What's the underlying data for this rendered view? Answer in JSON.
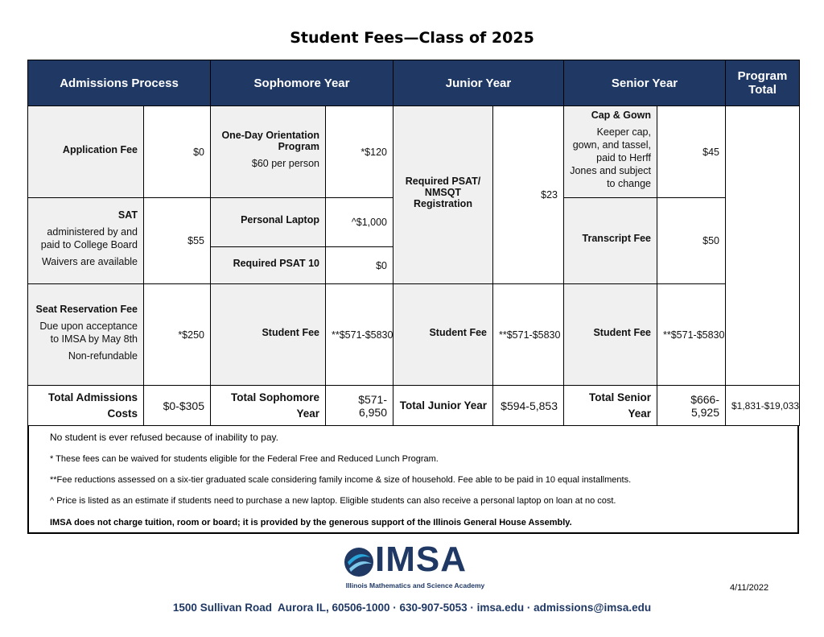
{
  "title": "Student Fees—Class of 2025",
  "headers": [
    "Admissions Process",
    "Sophomore Year",
    "Junior Year",
    "Senior Year",
    "Program Total"
  ],
  "admissions": [
    {
      "label": "Application Fee",
      "value": "$0"
    },
    {
      "label": "SAT",
      "notes": [
        "administered by and paid to College Board",
        "Waivers are available"
      ],
      "value": "$55"
    },
    {
      "label": "Seat Reservation Fee",
      "notes": [
        "Due upon acceptance to IMSA by May 8th",
        "Non-refundable"
      ],
      "value": "*$250"
    }
  ],
  "sophomore": [
    {
      "label": "One-Day Orientation Program",
      "notes": [
        "$60 per person"
      ],
      "value": "*$120"
    },
    {
      "label": "Personal Laptop",
      "value": "^$1,000"
    },
    {
      "label": "Required PSAT 10",
      "value": "$0"
    },
    {
      "label": "Student Fee",
      "value": "**$571-$5830"
    }
  ],
  "junior": [
    {
      "label": "Required PSAT/ NMSQT Registration",
      "value": "$23"
    },
    {
      "label": "Student Fee",
      "value": "**$571-$5830"
    }
  ],
  "senior": [
    {
      "label": "Cap & Gown",
      "notes": [
        "Keeper cap, gown, and tassel, paid to Herff Jones and subject to change"
      ],
      "value": "$45"
    },
    {
      "label": "Transcript Fee",
      "value": "$50"
    },
    {
      "label": "Student Fee",
      "value": "**$571-$5830"
    }
  ],
  "totals": [
    {
      "label": "Total Admissions Costs",
      "value": "$0-$305"
    },
    {
      "label": "Total Sophomore Year",
      "value": "$571-6,950"
    },
    {
      "label": "Total Junior Year",
      "value": "$594-5,853"
    },
    {
      "label": "Total Senior Year",
      "value": "$666-5,925"
    }
  ],
  "program_total": "$1,831-$19,033",
  "notes": [
    "No student is ever refused because of inability to pay.",
    "* These fees can be waived for students eligible for the Federal Free and Reduced Lunch Program.",
    "**Fee reductions assessed on a six-tier graduated scale considering family income & size of household.  Fee able to be paid in 10 equal installments.",
    "^ Price is listed as an estimate if students need to purchase a new laptop. Eligible students can also receive a personal laptop on loan at no cost.",
    "IMSA does not charge tuition, room or board; it is provided by the generous support of the Illinois General House Assembly."
  ],
  "logo": {
    "name": "IMSA",
    "subtitle": "Illinois Mathematics and Science Academy"
  },
  "date": "4/11/2022",
  "footer": "1500 Sullivan Road  Aurora IL, 60506-1000 · 630-907-5053 · imsa.edu · admissions@imsa.edu"
}
